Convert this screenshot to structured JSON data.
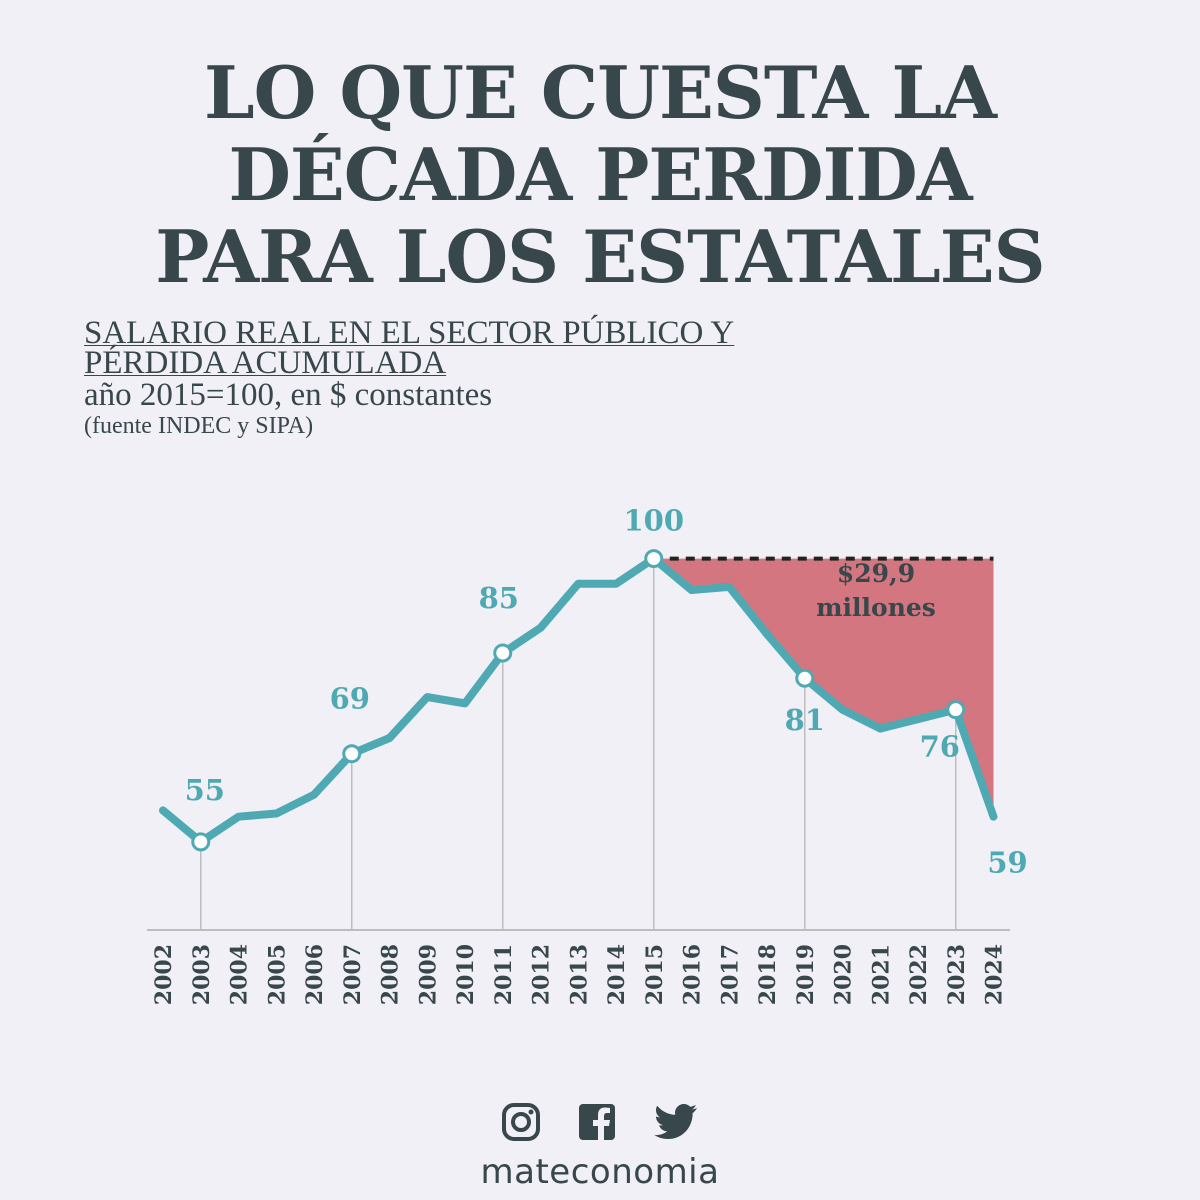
{
  "title_lines": [
    "LO QUE CUESTA LA",
    "DÉCADA PERDIDA",
    "PARA LOS ESTATALES"
  ],
  "subtitle": {
    "line1": "SALARIO REAL EN EL SECTOR PÚBLICO Y",
    "line2": "PÉRDIDA ACUMULADA",
    "line3": "año 2015=100, en $ constantes",
    "line4": "(fuente INDEC y SIPA)"
  },
  "chart_data": {
    "type": "line",
    "x": [
      2002,
      2003,
      2004,
      2005,
      2006,
      2007,
      2008,
      2009,
      2010,
      2011,
      2012,
      2013,
      2014,
      2015,
      2016,
      2017,
      2018,
      2019,
      2020,
      2021,
      2022,
      2023,
      2024
    ],
    "values": [
      60,
      55,
      59,
      59.5,
      62.5,
      69,
      71.5,
      78,
      77,
      85,
      89,
      96,
      96,
      100,
      95,
      95.5,
      88,
      81,
      76,
      73,
      74.5,
      76,
      59
    ],
    "labeled_points": [
      {
        "year": 2003,
        "label": "55"
      },
      {
        "year": 2007,
        "label": "69"
      },
      {
        "year": 2011,
        "label": "85"
      },
      {
        "year": 2015,
        "label": "100"
      },
      {
        "year": 2019,
        "label": "81"
      },
      {
        "year": 2023,
        "label": "76"
      },
      {
        "year": 2024,
        "label": "59"
      }
    ],
    "reference_value": 100,
    "shaded_loss": {
      "from": 2015,
      "to": 2024,
      "label_lines": [
        "$29,9",
        "millones"
      ]
    },
    "ylim": [
      41,
      102
    ],
    "colors": {
      "line": "#4fa9b3",
      "loss_fill": "#d4767f",
      "axis": "#bdbdbd",
      "text": "#37474b"
    }
  },
  "footer": {
    "icons": [
      "instagram-icon",
      "facebook-icon",
      "twitter-icon"
    ],
    "brand": "mateconomia"
  }
}
